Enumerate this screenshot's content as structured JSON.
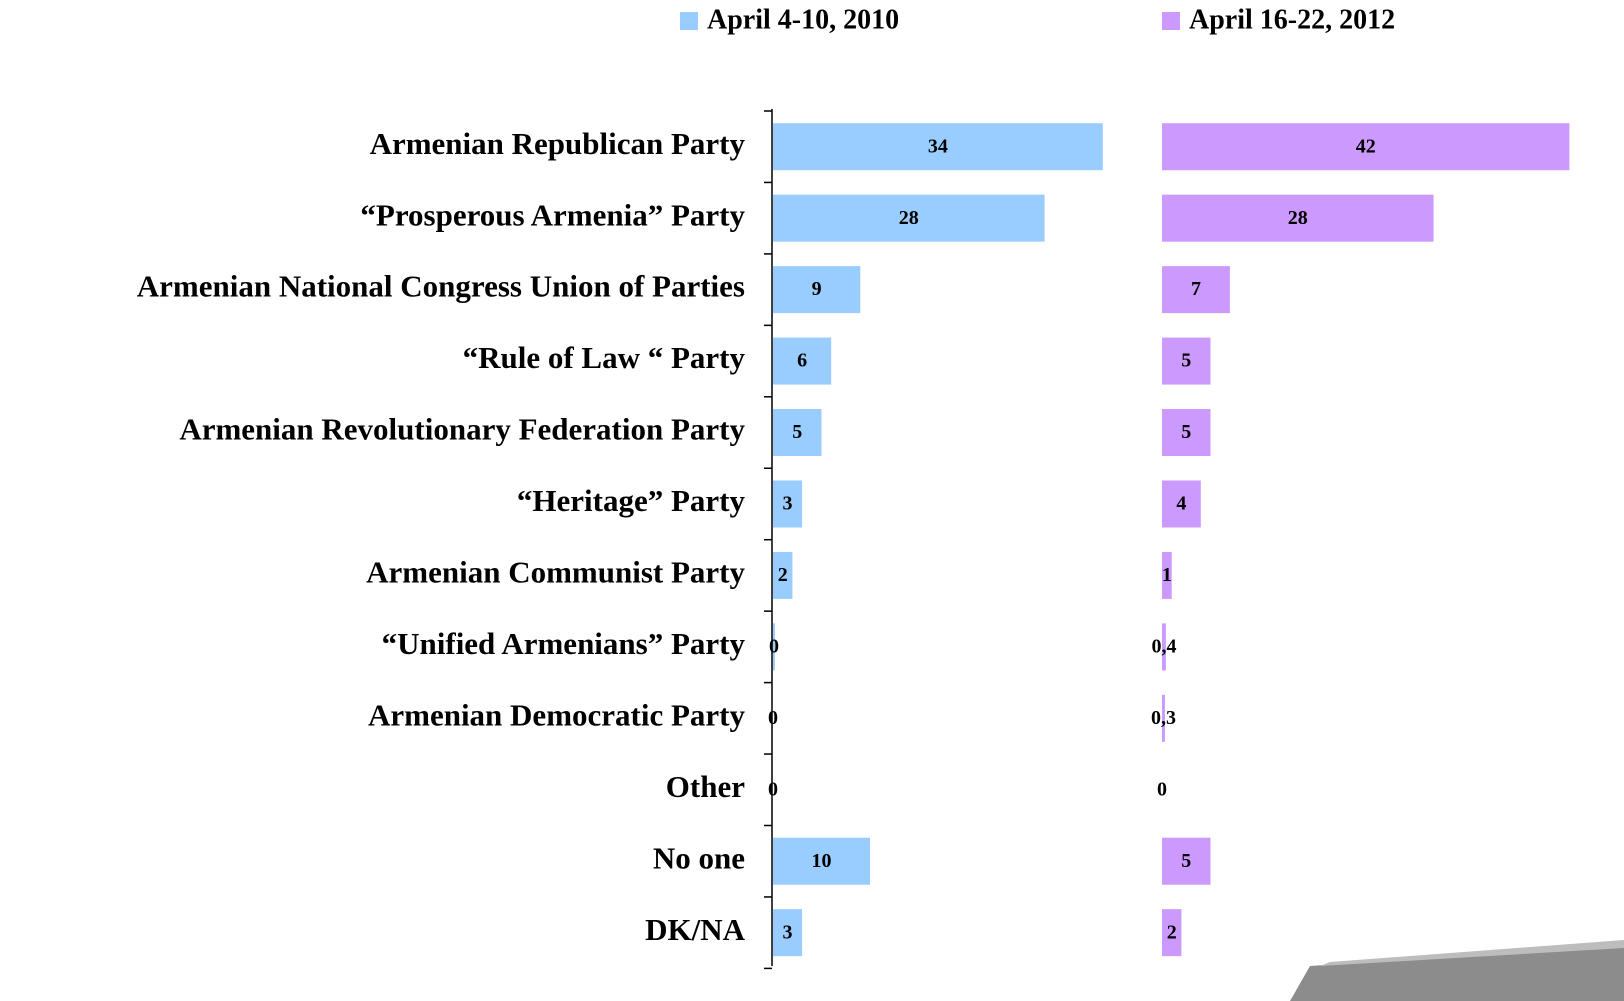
{
  "chart_data": {
    "type": "bar",
    "orientation": "horizontal",
    "categories": [
      "Armenian Republican Party",
      "“Prosperous Armenia” Party",
      "Armenian  National Congress Union of Parties",
      "“Rule of Law “ Party",
      "Armenian Revolutionary Federation Party",
      "“Heritage” Party",
      "Armenian Communist Party",
      "“Unified Armenians” Party",
      "Armenian Democratic Party",
      "Other",
      "No one",
      "DK/NA"
    ],
    "series": [
      {
        "name": "April 4-10, 2010",
        "color": "#99ccff",
        "values": [
          34,
          28,
          9,
          6,
          5,
          3,
          2,
          0.2,
          0,
          0,
          10,
          3
        ],
        "value_labels": [
          "34",
          "28",
          "9",
          "6",
          "5",
          "3",
          "2",
          "0",
          "0",
          "0",
          "10",
          "3"
        ]
      },
      {
        "name": "April 16-22, 2012",
        "color": "#cc99ff",
        "values": [
          42,
          28,
          7,
          5,
          5,
          4,
          1,
          0.4,
          0.3,
          0,
          5,
          2
        ],
        "value_labels": [
          "42",
          "28",
          "7",
          "5",
          "5",
          "4",
          "1",
          "0,4",
          "0,3",
          "0",
          "5",
          "2"
        ]
      }
    ]
  }
}
